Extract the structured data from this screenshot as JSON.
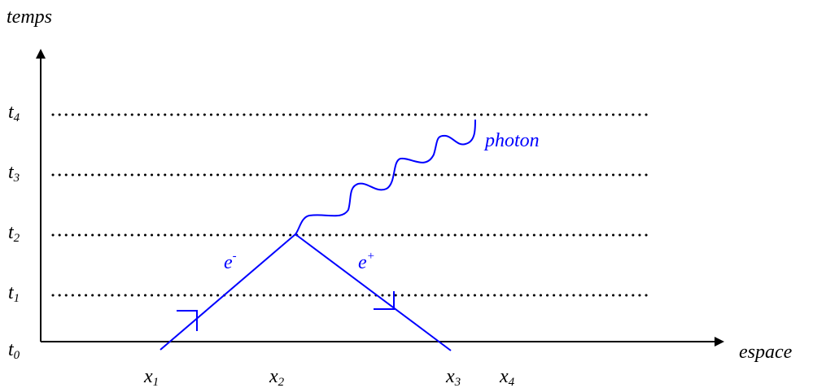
{
  "axes": {
    "y_label": "temps",
    "x_label": "espace"
  },
  "time_marks": [
    {
      "name": "t",
      "sub": "0"
    },
    {
      "name": "t",
      "sub": "1"
    },
    {
      "name": "t",
      "sub": "2"
    },
    {
      "name": "t",
      "sub": "3"
    },
    {
      "name": "t",
      "sub": "4"
    }
  ],
  "space_marks": [
    {
      "name": "x",
      "sub": "1"
    },
    {
      "name": "x",
      "sub": "2"
    },
    {
      "name": "x",
      "sub": "3"
    },
    {
      "name": "x",
      "sub": "4"
    }
  ],
  "particles": {
    "electron": {
      "name": "e",
      "sup": "-"
    },
    "positron": {
      "name": "e",
      "sup": "+"
    },
    "photon": "photon"
  },
  "colors": {
    "axis": "#000000",
    "particle": "#0000ff"
  }
}
